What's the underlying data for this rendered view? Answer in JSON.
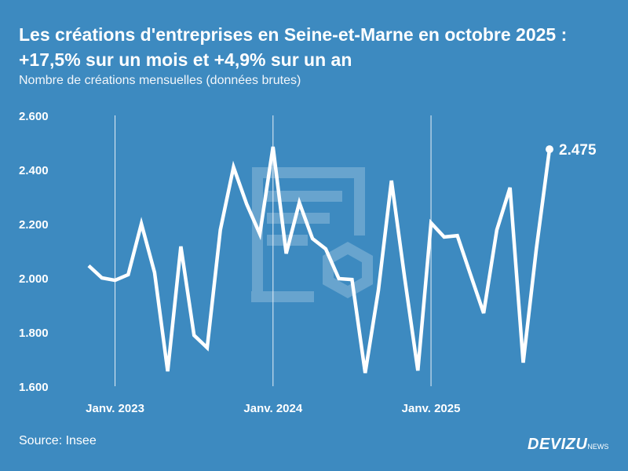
{
  "header": {
    "title": "Les créations d'entreprises en Seine-et-Marne en octobre 2025 : +17,5% sur un mois et +4,9% sur un an",
    "subtitle": "Nombre de créations mensuelles (données brutes)"
  },
  "footer": {
    "source": "Source: Insee",
    "brand": "DEVIZU",
    "brand_suffix": "NEWS"
  },
  "colors": {
    "background": "#3d8ac0",
    "line": "#ffffff"
  },
  "chart_data": {
    "type": "line",
    "title": "Les créations d'entreprises en Seine-et-Marne en octobre 2025 : +17,5% sur un mois et +4,9% sur un an",
    "ylabel": "",
    "xlabel": "",
    "ylim": [
      1600,
      2600
    ],
    "yticks": [
      1600,
      1800,
      2000,
      2200,
      2400,
      2600
    ],
    "ytick_labels": [
      "1.600",
      "1.800",
      "2.000",
      "2.200",
      "2.400",
      "2.600"
    ],
    "xticks": [
      "2023-01",
      "2024-01",
      "2025-01"
    ],
    "xtick_labels": [
      "Janv. 2023",
      "Janv. 2024",
      "Janv. 2025"
    ],
    "grid": "vertical lines at January",
    "x": [
      "2022-11",
      "2022-12",
      "2023-01",
      "2023-02",
      "2023-03",
      "2023-04",
      "2023-05",
      "2023-06",
      "2023-07",
      "2023-08",
      "2023-09",
      "2023-10",
      "2023-11",
      "2023-12",
      "2024-01",
      "2024-02",
      "2024-03",
      "2024-04",
      "2024-05",
      "2024-06",
      "2024-07",
      "2024-08",
      "2024-09",
      "2024-10",
      "2024-11",
      "2024-12",
      "2025-01",
      "2025-02",
      "2025-03",
      "2025-04",
      "2025-05",
      "2025-06",
      "2025-07",
      "2025-08",
      "2025-09",
      "2025-10"
    ],
    "values": [
      2045,
      2000,
      1991,
      2012,
      2200,
      2020,
      1655,
      2116,
      1788,
      1742,
      2177,
      2409,
      2272,
      2162,
      2484,
      2090,
      2278,
      2145,
      2107,
      1997,
      1994,
      1649,
      1954,
      2359,
      2000,
      1658,
      2203,
      2151,
      2156,
      2012,
      1870,
      2177,
      2333,
      1687,
      2106,
      2475
    ],
    "last_label": "2.475"
  }
}
